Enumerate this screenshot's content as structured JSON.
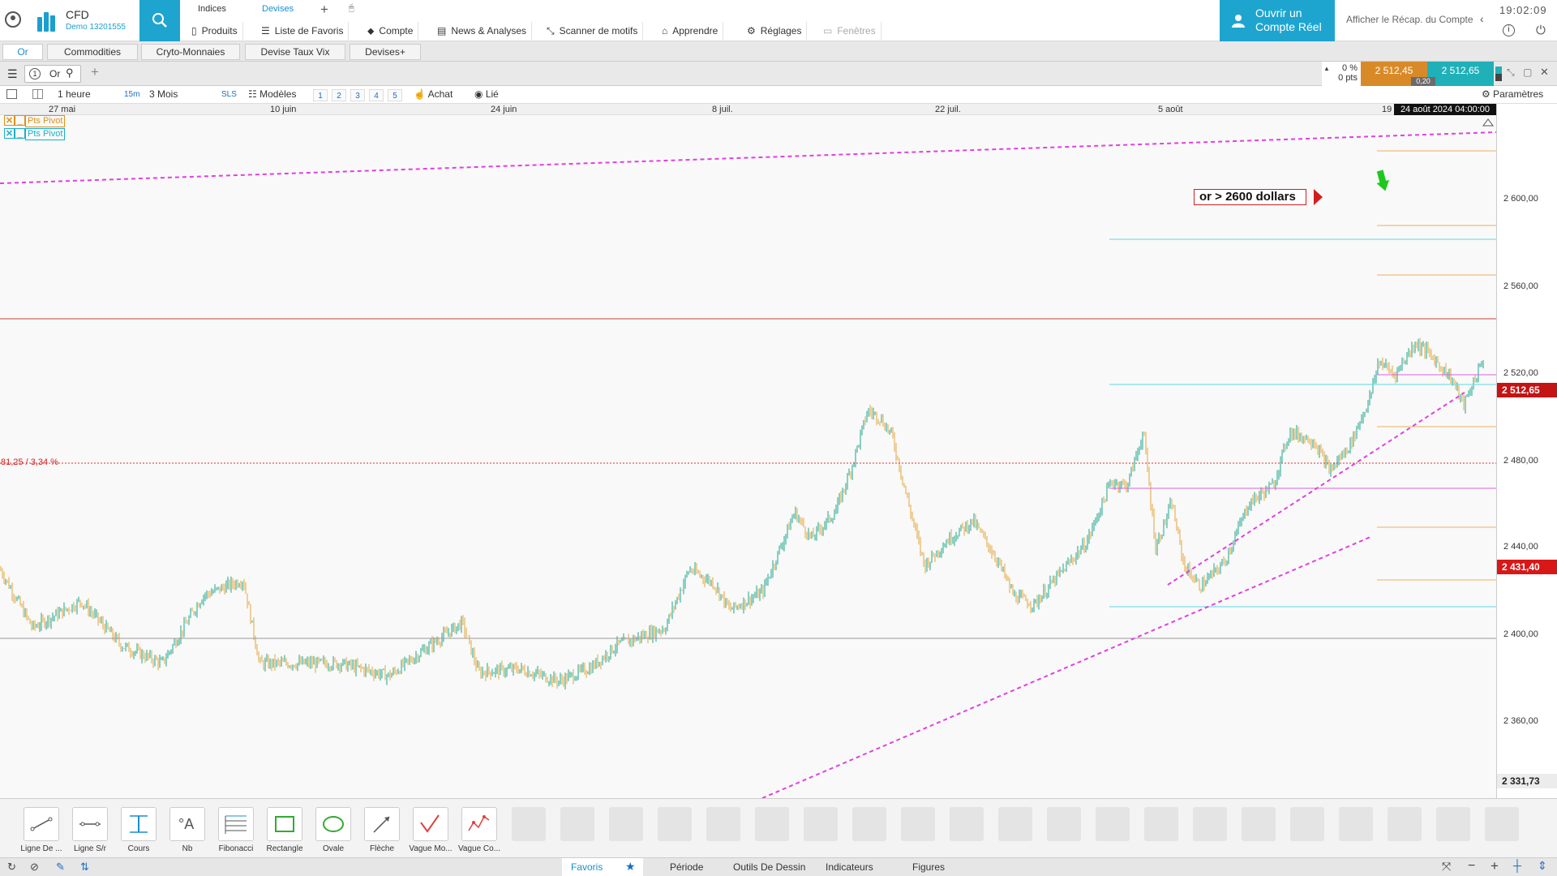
{
  "header": {
    "brand": "CFD",
    "account": "Demo 13201555",
    "top_tabs": [
      "Indices",
      "Devises"
    ],
    "menu": [
      "Produits",
      "Liste de Favoris",
      "Compte",
      "News & Analyses",
      "Scanner de motifs",
      "Apprendre",
      "Réglages",
      "Fenêtres"
    ],
    "open_real_line1": "Ouvrir un",
    "open_real_line2": "Compte Réel",
    "recap": "Afficher le Récap. du Compte",
    "clock": "19:02:09"
  },
  "instrument_tabs": [
    "Or",
    "Commodities",
    "Cryto-Monnaies",
    "Devise Taux Vix",
    "Devises+"
  ],
  "chart_toolbar": {
    "instrument": "Or",
    "change_pct": "0 %",
    "change_pts": "0 pts",
    "bid": "2 512,45",
    "ask": "2 512,65",
    "spread": "0,20"
  },
  "toolbar2": {
    "timeframe": "1 heure",
    "quick_tf": "15m",
    "range": "3 Mois",
    "sls": "SLS",
    "models": "Modèles",
    "nums": [
      "1",
      "2",
      "3",
      "4",
      "5"
    ],
    "achat": "Achat",
    "lie": "Lié",
    "params": "Paramètres"
  },
  "date_axis": [
    "27 mai",
    "10 juin",
    "24 juin",
    "8 juil.",
    "22 juil.",
    "5 août",
    "19"
  ],
  "date_cursor": "24 août 2024 04:00:00",
  "price_axis": [
    "2 600,00",
    "2 560,00",
    "2 520,00",
    "2 480,00",
    "2 440,00",
    "2 400,00",
    "2 360,00"
  ],
  "price_tags": {
    "current": "2 512,65",
    "level": "2 431,40",
    "bottom": "2 331,73"
  },
  "annotations": {
    "pivot1": "Pts Pivot",
    "pivot2": "Pts Pivot",
    "callout": "or > 2600 dollars",
    "level_text": "81,25 / 3,34 %"
  },
  "colors": {
    "accent": "#1ea5cf",
    "up_candle": "#1aa58a",
    "down_candle": "#e2a53a",
    "trend": "#e040e0",
    "current_line": "#d04040"
  },
  "tools": [
    "Ligne De ...",
    "Ligne S/r",
    "Cours",
    "Nb",
    "Fibonacci",
    "Rectangle",
    "Ovale",
    "Flèche",
    "Vague Mo...",
    "Vague Co..."
  ],
  "status_tabs": [
    "Favoris",
    "Période",
    "Outils De Dessin",
    "Indicateurs",
    "Figures"
  ]
}
